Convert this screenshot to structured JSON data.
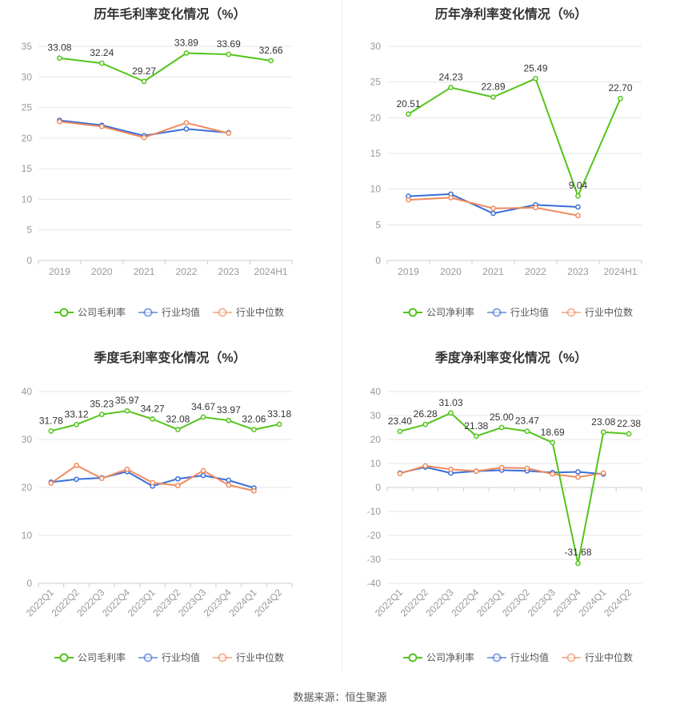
{
  "source": "数据来源：恒生聚源",
  "colors": {
    "company": "#52c41a",
    "avg": "#3b6ed8",
    "median": "#f08a5d",
    "grid": "#e6e6e6",
    "axis": "#999999"
  },
  "chart_data": [
    {
      "id": "annual-gross",
      "type": "line",
      "title": "历年毛利率变化情况（%）",
      "categories": [
        "2019",
        "2020",
        "2021",
        "2022",
        "2023",
        "2024H1"
      ],
      "ylim": [
        0,
        35
      ],
      "yticks": [
        0,
        5,
        10,
        15,
        20,
        25,
        30,
        35
      ],
      "series": [
        {
          "key": "company",
          "name": "公司毛利率",
          "values": [
            33.08,
            32.24,
            29.27,
            33.89,
            33.69,
            32.66
          ],
          "labels": [
            "33.08",
            "32.24",
            "29.27",
            "33.89",
            "33.69",
            "32.66"
          ]
        },
        {
          "key": "avg",
          "name": "行业均值",
          "values": [
            22.9,
            22.1,
            20.4,
            21.5,
            20.9,
            null
          ]
        },
        {
          "key": "median",
          "name": "行业中位数",
          "values": [
            22.7,
            21.9,
            20.1,
            22.5,
            20.8,
            null
          ]
        }
      ]
    },
    {
      "id": "annual-net",
      "type": "line",
      "title": "历年净利率变化情况（%）",
      "categories": [
        "2019",
        "2020",
        "2021",
        "2022",
        "2023",
        "2024H1"
      ],
      "ylim": [
        0,
        30
      ],
      "yticks": [
        0,
        5,
        10,
        15,
        20,
        25,
        30
      ],
      "series": [
        {
          "key": "company",
          "name": "公司净利率",
          "values": [
            20.51,
            24.23,
            22.89,
            25.49,
            9.04,
            22.7
          ],
          "labels": [
            "20.51",
            "24.23",
            "22.89",
            "25.49",
            "9.04",
            "22.70"
          ]
        },
        {
          "key": "avg",
          "name": "行业均值",
          "values": [
            9.0,
            9.3,
            6.6,
            7.8,
            7.5,
            null
          ]
        },
        {
          "key": "median",
          "name": "行业中位数",
          "values": [
            8.5,
            8.8,
            7.3,
            7.4,
            6.3,
            null
          ]
        }
      ]
    },
    {
      "id": "quarterly-gross",
      "type": "line",
      "title": "季度毛利率变化情况（%）",
      "categories": [
        "2022Q1",
        "2022Q2",
        "2022Q3",
        "2022Q4",
        "2023Q1",
        "2023Q2",
        "2023Q3",
        "2023Q4",
        "2024Q1",
        "2024Q2"
      ],
      "ylim": [
        0,
        40
      ],
      "yticks": [
        0,
        10,
        20,
        30,
        40
      ],
      "series": [
        {
          "key": "company",
          "name": "公司毛利率",
          "values": [
            31.78,
            33.12,
            35.23,
            35.97,
            34.27,
            32.08,
            34.67,
            33.97,
            32.06,
            33.18
          ],
          "labels": [
            "31.78",
            "33.12",
            "35.23",
            "35.97",
            "34.27",
            "32.08",
            "34.67",
            "33.97",
            "32.06",
            "33.18"
          ]
        },
        {
          "key": "avg",
          "name": "行业均值",
          "values": [
            21.1,
            21.7,
            22.0,
            23.3,
            20.3,
            21.8,
            22.5,
            21.5,
            19.9,
            null
          ]
        },
        {
          "key": "median",
          "name": "行业中位数",
          "values": [
            20.9,
            24.6,
            21.9,
            23.8,
            21.0,
            20.4,
            23.5,
            20.5,
            19.3,
            null
          ]
        }
      ]
    },
    {
      "id": "quarterly-net",
      "type": "line",
      "title": "季度净利率变化情况（%）",
      "categories": [
        "2022Q1",
        "2022Q2",
        "2022Q3",
        "2022Q4",
        "2023Q1",
        "2023Q2",
        "2023Q3",
        "2023Q4",
        "2024Q1",
        "2024Q2"
      ],
      "ylim": [
        -40,
        40
      ],
      "yticks": [
        -40,
        -30,
        -20,
        -10,
        0,
        10,
        20,
        30,
        40
      ],
      "series": [
        {
          "key": "company",
          "name": "公司净利率",
          "values": [
            23.4,
            26.28,
            31.03,
            21.38,
            25.0,
            23.47,
            18.69,
            -31.68,
            23.08,
            22.38
          ],
          "labels": [
            "23.40",
            "26.28",
            "31.03",
            "21.38",
            "25.00",
            "23.47",
            "18.69",
            "-31.68",
            "23.08",
            "22.38"
          ]
        },
        {
          "key": "avg",
          "name": "行业均值",
          "values": [
            6.0,
            8.5,
            6.0,
            6.8,
            7.2,
            6.9,
            6.2,
            6.5,
            5.6,
            null
          ]
        },
        {
          "key": "median",
          "name": "行业中位数",
          "values": [
            5.8,
            9.0,
            7.6,
            6.8,
            8.3,
            8.0,
            5.6,
            4.3,
            6.0,
            null
          ]
        }
      ]
    }
  ]
}
